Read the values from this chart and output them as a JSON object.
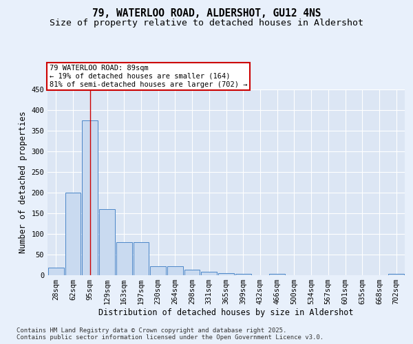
{
  "title": "79, WATERLOO ROAD, ALDERSHOT, GU12 4NS",
  "subtitle": "Size of property relative to detached houses in Aldershot",
  "xlabel": "Distribution of detached houses by size in Aldershot",
  "ylabel": "Number of detached properties",
  "categories": [
    "28sqm",
    "62sqm",
    "95sqm",
    "129sqm",
    "163sqm",
    "197sqm",
    "230sqm",
    "264sqm",
    "298sqm",
    "331sqm",
    "365sqm",
    "399sqm",
    "432sqm",
    "466sqm",
    "500sqm",
    "534sqm",
    "567sqm",
    "601sqm",
    "635sqm",
    "668sqm",
    "702sqm"
  ],
  "values": [
    18,
    200,
    375,
    160,
    80,
    80,
    22,
    22,
    14,
    8,
    5,
    3,
    0,
    3,
    0,
    0,
    0,
    0,
    0,
    0,
    3
  ],
  "bar_color": "#c9daf0",
  "bar_edge_color": "#4a86c8",
  "vline_x": 2,
  "vline_color": "#cc0000",
  "annotation_line1": "79 WATERLOO ROAD: 89sqm",
  "annotation_line2": "← 19% of detached houses are smaller (164)",
  "annotation_line3": "81% of semi-detached houses are larger (702) →",
  "annotation_box_color": "#ffffff",
  "annotation_box_edge_color": "#cc0000",
  "ylim": [
    0,
    450
  ],
  "yticks": [
    0,
    50,
    100,
    150,
    200,
    250,
    300,
    350,
    400,
    450
  ],
  "background_color": "#e8f0fb",
  "plot_bg_color": "#dce6f4",
  "footer_text": "Contains HM Land Registry data © Crown copyright and database right 2025.\nContains public sector information licensed under the Open Government Licence v3.0.",
  "title_fontsize": 10.5,
  "subtitle_fontsize": 9.5,
  "axis_label_fontsize": 8.5,
  "tick_fontsize": 7.5,
  "annotation_fontsize": 7.5,
  "footer_fontsize": 6.5
}
